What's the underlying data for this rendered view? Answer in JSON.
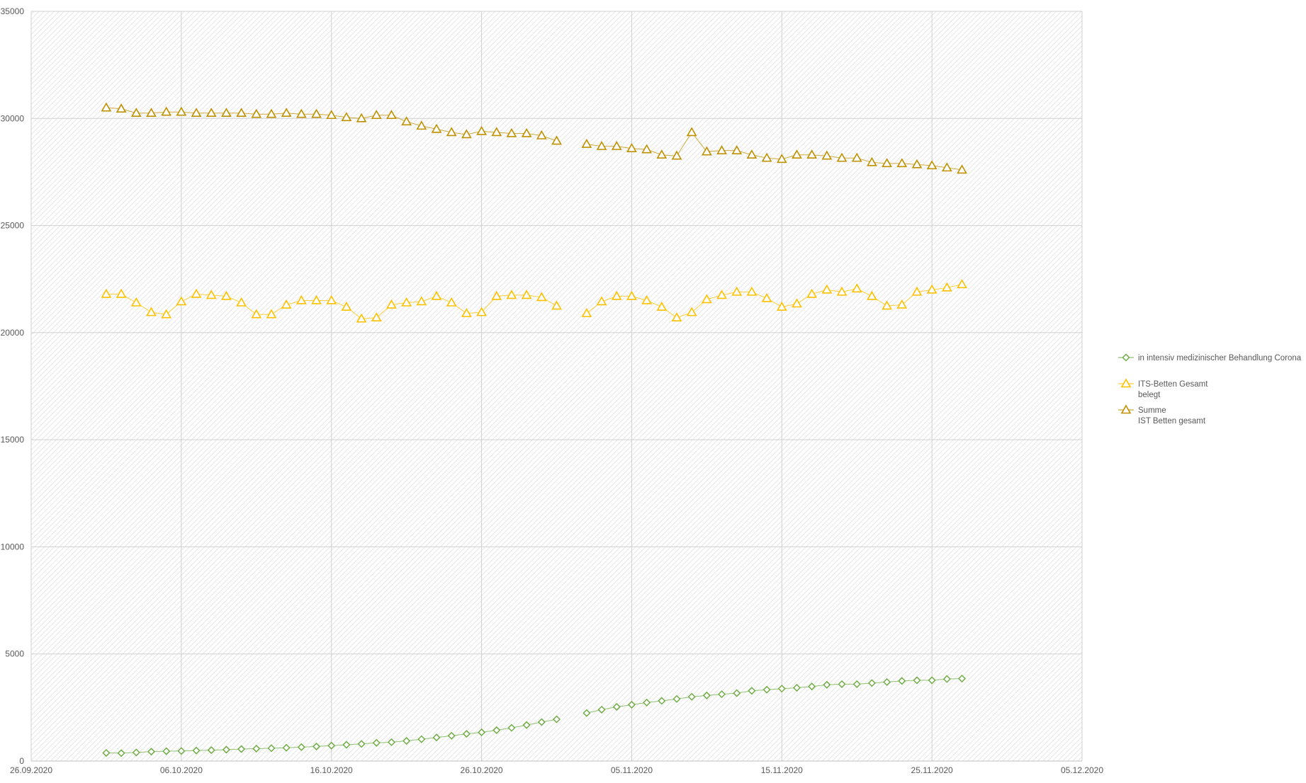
{
  "chart_data": {
    "type": "line",
    "title": "",
    "xlabel": "",
    "ylabel": "",
    "ylim": [
      0,
      35000
    ],
    "yticks": [
      0,
      5000,
      10000,
      15000,
      20000,
      25000,
      30000,
      35000
    ],
    "ytick_labels": [
      "0",
      "5000",
      "10000",
      "15000",
      "20000",
      "25000",
      "30000",
      "35000"
    ],
    "xlim": [
      "2020-09-26",
      "2020-12-05"
    ],
    "xticks": [
      "2020-09-26",
      "2020-10-06",
      "2020-10-16",
      "2020-10-26",
      "2020-11-05",
      "2020-11-15",
      "2020-11-25",
      "2020-12-05"
    ],
    "xtick_labels": [
      "26.09.2020",
      "06.10.2020",
      "16.10.2020",
      "26.10.2020",
      "05.11.2020",
      "15.11.2020",
      "25.11.2020",
      "05.12.2020"
    ],
    "grid": true,
    "legend_position": "right",
    "x": [
      "2020-10-01",
      "2020-10-02",
      "2020-10-03",
      "2020-10-04",
      "2020-10-05",
      "2020-10-06",
      "2020-10-07",
      "2020-10-08",
      "2020-10-09",
      "2020-10-10",
      "2020-10-11",
      "2020-10-12",
      "2020-10-13",
      "2020-10-14",
      "2020-10-15",
      "2020-10-16",
      "2020-10-17",
      "2020-10-18",
      "2020-10-19",
      "2020-10-20",
      "2020-10-21",
      "2020-10-22",
      "2020-10-23",
      "2020-10-24",
      "2020-10-25",
      "2020-10-26",
      "2020-10-27",
      "2020-10-28",
      "2020-10-29",
      "2020-10-30",
      "2020-10-31",
      "2020-11-01",
      "2020-11-02",
      "2020-11-03",
      "2020-11-04",
      "2020-11-05",
      "2020-11-06",
      "2020-11-07",
      "2020-11-08",
      "2020-11-09",
      "2020-11-10",
      "2020-11-11",
      "2020-11-12",
      "2020-11-13",
      "2020-11-14",
      "2020-11-15",
      "2020-11-16",
      "2020-11-17",
      "2020-11-18",
      "2020-11-19",
      "2020-11-20",
      "2020-11-21",
      "2020-11-22",
      "2020-11-23",
      "2020-11-24",
      "2020-11-25",
      "2020-11-26",
      "2020-11-27"
    ],
    "series": [
      {
        "name": "in intensiv medizinischer Behandlung Corona",
        "color": "#70ad47",
        "marker": "diamond",
        "values": [
          380,
          370,
          400,
          440,
          460,
          470,
          490,
          510,
          530,
          560,
          580,
          600,
          620,
          650,
          680,
          720,
          760,
          800,
          850,
          880,
          940,
          1020,
          1100,
          1180,
          1270,
          1340,
          1440,
          1550,
          1680,
          1820,
          1950,
          null,
          2240,
          2400,
          2530,
          2630,
          2730,
          2810,
          2900,
          3000,
          3060,
          3120,
          3170,
          3280,
          3330,
          3380,
          3420,
          3480,
          3560,
          3590,
          3590,
          3640,
          3690,
          3740,
          3770,
          3770,
          3830,
          3850
        ]
      },
      {
        "name_lines": [
          "ITS-Betten Gesamt",
          "belegt"
        ],
        "color": "#ffc000",
        "marker": "triangle",
        "values": [
          21800,
          21800,
          21400,
          20950,
          20850,
          21450,
          21800,
          21750,
          21700,
          21400,
          20850,
          20850,
          21300,
          21500,
          21500,
          21500,
          21200,
          20650,
          20700,
          21300,
          21400,
          21450,
          21700,
          21400,
          20900,
          20950,
          21700,
          21750,
          21750,
          21650,
          21250,
          null,
          20900,
          21450,
          21700,
          21700,
          21500,
          21200,
          20700,
          20950,
          21550,
          21750,
          21900,
          21900,
          21600,
          21200,
          21350,
          21800,
          22000,
          21900,
          22050,
          21700,
          21250,
          21300,
          21900,
          22000,
          22100,
          22250
        ]
      },
      {
        "name_lines": [
          "Summe",
          "IST Betten gesamt"
        ],
        "color": "#bf9000",
        "marker": "triangle",
        "values": [
          30500,
          30450,
          30250,
          30250,
          30300,
          30300,
          30250,
          30250,
          30250,
          30250,
          30200,
          30200,
          30250,
          30200,
          30200,
          30150,
          30050,
          30000,
          30150,
          30150,
          29850,
          29650,
          29500,
          29350,
          29250,
          29400,
          29350,
          29300,
          29300,
          29200,
          28950,
          null,
          28800,
          28700,
          28700,
          28600,
          28550,
          28300,
          28250,
          29350,
          28450,
          28500,
          28500,
          28300,
          28150,
          28100,
          28300,
          28300,
          28250,
          28150,
          28150,
          27950,
          27900,
          27900,
          27850,
          27800,
          27700,
          27600
        ]
      }
    ]
  }
}
